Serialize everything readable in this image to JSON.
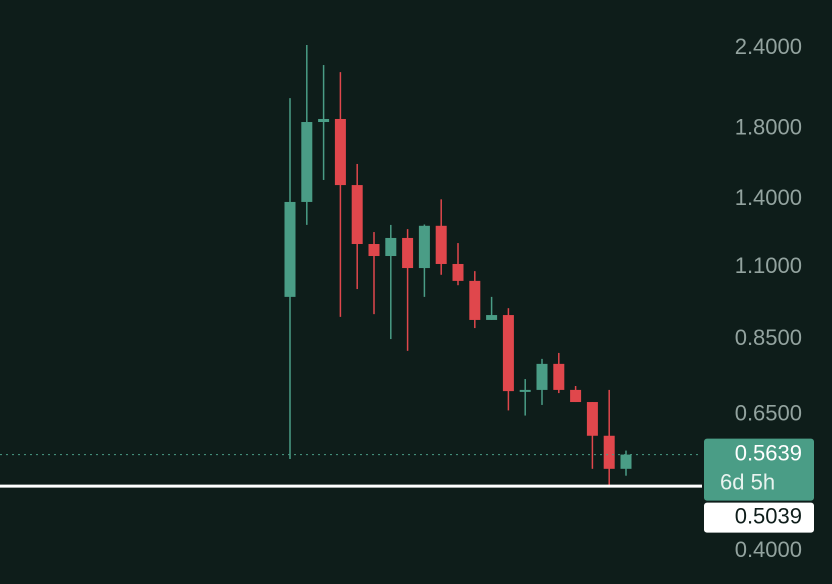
{
  "chart_data": {
    "type": "candlestick",
    "log_scale": true,
    "ylim": [
      0.3556,
      2.848
    ],
    "yticks": [
      {
        "value": 2.4,
        "label": "2.4000"
      },
      {
        "value": 1.8,
        "label": "1.8000"
      },
      {
        "value": 1.4,
        "label": "1.4000"
      },
      {
        "value": 1.1,
        "label": "1.1000"
      },
      {
        "value": 0.85,
        "label": "0.8500"
      },
      {
        "value": 0.65,
        "label": "0.6500"
      },
      {
        "value": 0.4,
        "label": "0.4000"
      }
    ],
    "up_color": "#4a9d86",
    "down_color": "#e0474c",
    "open": [
      0.989,
      1.387,
      1.844,
      1.864,
      1.473,
      1.194,
      1.144,
      1.22,
      1.096,
      1.274,
      1.112,
      1.047,
      0.911,
      0.927,
      0.707,
      0.71,
      0.779,
      0.71,
      0.68,
      0.603,
      0.536
    ],
    "high": [
      2.008,
      2.426,
      2.259,
      2.203,
      1.588,
      1.246,
      1.278,
      1.259,
      1.28,
      1.4,
      1.198,
      1.084,
      0.989,
      0.95,
      0.738,
      0.793,
      0.81,
      0.72,
      0.68,
      0.71,
      0.572
    ],
    "low": [
      0.555,
      1.278,
      1.5,
      0.921,
      1.017,
      0.93,
      0.851,
      0.816,
      0.989,
      1.07,
      1.031,
      0.885,
      0.911,
      0.66,
      0.648,
      0.673,
      0.702,
      0.68,
      0.536,
      0.502,
      0.523
    ],
    "close": [
      1.387,
      1.844,
      1.864,
      1.473,
      1.194,
      1.144,
      1.22,
      1.096,
      1.274,
      1.112,
      1.047,
      0.911,
      0.927,
      0.707,
      0.71,
      0.779,
      0.71,
      0.68,
      0.603,
      0.536,
      0.5639
    ],
    "last_price": 0.5639,
    "countdown": "6d 5h",
    "marked_price": 0.5039
  }
}
